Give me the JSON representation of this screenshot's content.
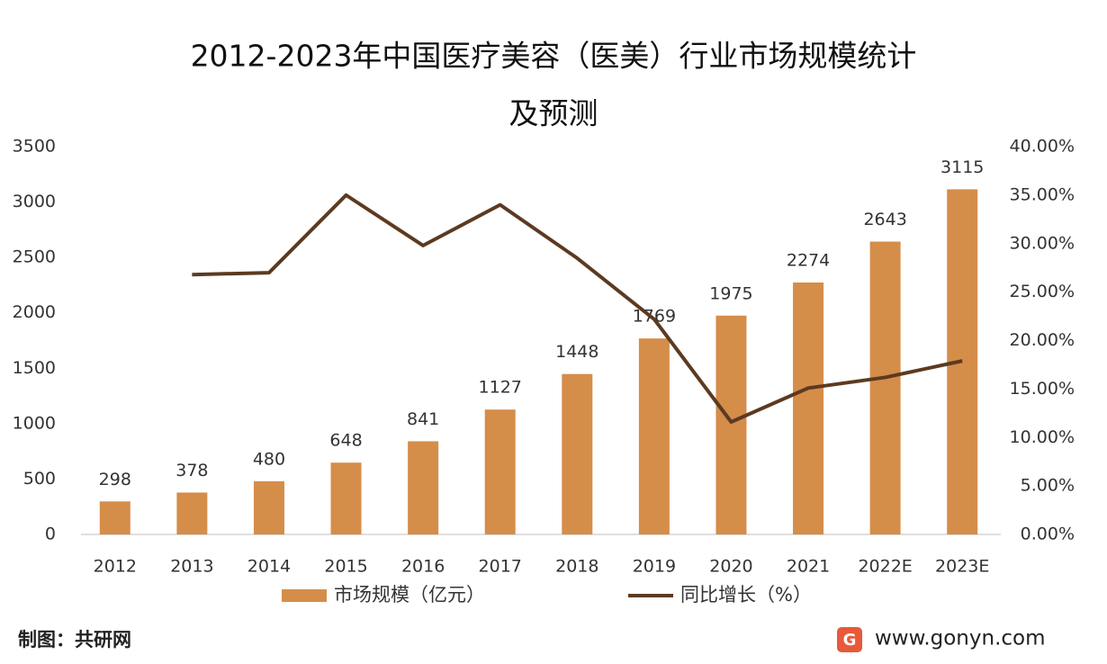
{
  "chart_data": {
    "type": "bar_line",
    "title": "2012-2023年中国医疗美容（医美）行业市场规模统计",
    "subtitle": "及预测",
    "categories": [
      "2012",
      "2013",
      "2014",
      "2015",
      "2016",
      "2017",
      "2018",
      "2019",
      "2020",
      "2021",
      "2022E",
      "2023E"
    ],
    "series": [
      {
        "name": "市场规模（亿元）",
        "color": "#d58d4a",
        "type": "bar",
        "values": [
          298,
          378,
          480,
          648,
          841,
          1127,
          1448,
          1769,
          1975,
          2274,
          2643,
          3115
        ]
      },
      {
        "name": "同比增长（%）",
        "color": "#5c3a21",
        "type": "line",
        "axis": "y2",
        "values": [
          null,
          26.8,
          27.0,
          35.0,
          29.8,
          34.0,
          28.5,
          22.2,
          11.6,
          15.1,
          16.2,
          17.9
        ]
      }
    ],
    "ylim": [
      0,
      3500
    ],
    "yticks": [
      0,
      500,
      1000,
      1500,
      2000,
      2500,
      3000,
      3500
    ],
    "y2lim": [
      0,
      40
    ],
    "y2ticks": [
      {
        "value": 0,
        "label": "0.00%"
      },
      {
        "value": 5,
        "label": "5.00%"
      },
      {
        "value": 10,
        "label": "10.00%"
      },
      {
        "value": 15,
        "label": "15.00%"
      },
      {
        "value": 20,
        "label": "20.00%"
      },
      {
        "value": 25,
        "label": "25.00%"
      },
      {
        "value": 30,
        "label": "30.00%"
      },
      {
        "value": 35,
        "label": "35.00%"
      },
      {
        "value": 40,
        "label": "40.00%"
      }
    ],
    "grid": false,
    "legend": "bottom"
  },
  "footer": {
    "source": "制图：共研网",
    "site": "www.gonyn.com"
  }
}
